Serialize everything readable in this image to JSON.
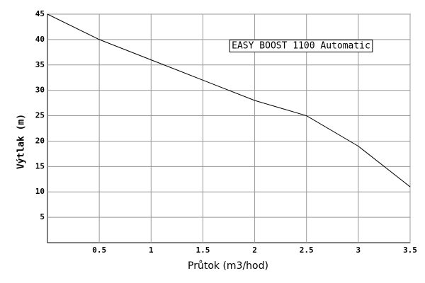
{
  "chart_data": {
    "type": "line",
    "x_label": "Průtok (m3/hod)",
    "y_label": "Výtlak (m)",
    "x": [
      0,
      0.5,
      1,
      1.5,
      2,
      2.5,
      3,
      3.5
    ],
    "series": [
      {
        "name": "EASY BOOST 1100 Automatic",
        "color": "#000000",
        "values": [
          45,
          40,
          36,
          32,
          28,
          25,
          19,
          11
        ]
      }
    ],
    "xlim": [
      0,
      3.5
    ],
    "xticks": [
      0.5,
      1,
      1.5,
      2,
      2.5,
      3,
      3.5
    ],
    "ylim": [
      0,
      45
    ],
    "yticks": [
      5,
      10,
      15,
      20,
      25,
      30,
      35,
      40,
      45
    ],
    "grid": true
  }
}
